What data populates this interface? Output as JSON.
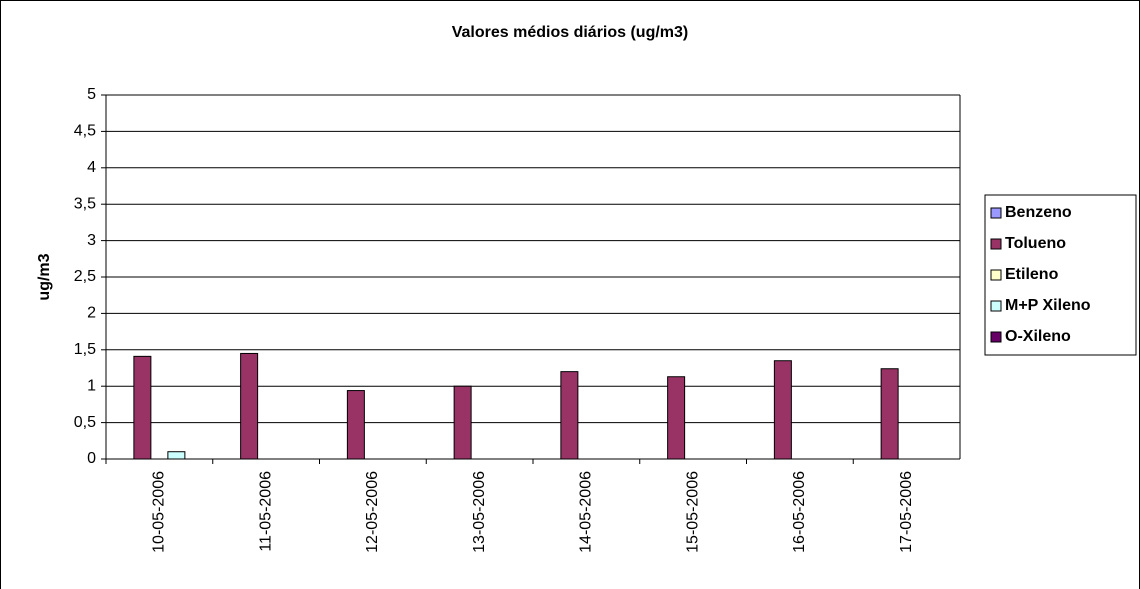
{
  "chart_data": {
    "type": "bar",
    "title": "Valores médios diários (ug/m3)",
    "y_label": "ug/m3",
    "categories": [
      "10-05-2006",
      "11-05-2006",
      "12-05-2006",
      "13-05-2006",
      "14-05-2006",
      "15-05-2006",
      "16-05-2006",
      "17-05-2006"
    ],
    "series": [
      {
        "name": "Benzeno",
        "color": "#9999ff",
        "values": [
          0,
          0,
          0,
          0,
          0,
          0,
          0,
          0
        ]
      },
      {
        "name": "Tolueno",
        "color": "#993366",
        "values": [
          1.41,
          1.45,
          0.94,
          1.0,
          1.2,
          1.13,
          1.35,
          1.24
        ]
      },
      {
        "name": "Etileno",
        "color": "#ffffcc",
        "values": [
          0,
          0,
          0,
          0,
          0,
          0,
          0,
          0
        ]
      },
      {
        "name": "M+P Xileno",
        "color": "#ccffff",
        "values": [
          0.1,
          0,
          0,
          0,
          0,
          0,
          0,
          0
        ]
      },
      {
        "name": "O-Xileno",
        "color": "#660066",
        "values": [
          0,
          0,
          0,
          0,
          0,
          0,
          0,
          0
        ]
      }
    ],
    "ylim": [
      0,
      5
    ],
    "yticks": [
      0,
      {
        "value": 0.5,
        "label": "0,5"
      },
      1,
      {
        "value": 1.5,
        "label": "1,5"
      },
      2,
      {
        "value": 2.5,
        "label": "2,5"
      },
      3,
      {
        "value": 3.5,
        "label": "3,5"
      },
      4,
      {
        "value": 4.5,
        "label": "4,5"
      },
      5
    ],
    "grid": true,
    "legend": "right"
  }
}
